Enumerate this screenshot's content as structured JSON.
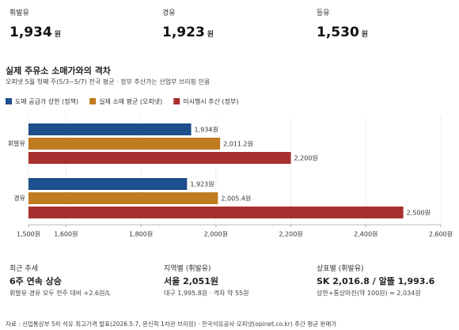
{
  "prices": [
    {
      "label": "휘발유",
      "value": "1,934",
      "unit": "원"
    },
    {
      "label": "경유",
      "value": "1,923",
      "unit": "원"
    },
    {
      "label": "등유",
      "value": "1,530",
      "unit": "원"
    }
  ],
  "chart_data": {
    "type": "bar",
    "orientation": "horizontal",
    "title": "실제 주유소 소매가와의 격차",
    "subtitle": "오피넷 5월 첫째 주(5/3~5/7) 전국 평균 · 정부 추산가는 산업부 브리핑 인용",
    "categories": [
      "휘발유",
      "경유"
    ],
    "series": [
      {
        "name": "도매 공급가 상한 (정책)",
        "color": "#1f4e8c",
        "values": [
          1934,
          1923
        ],
        "value_labels": [
          "1,934원",
          "1,923원"
        ]
      },
      {
        "name": "실제 소매 평균 (오피넷)",
        "color": "#c07a1f",
        "values": [
          2011.2,
          2005.4
        ],
        "value_labels": [
          "2,011.2원",
          "2,005.4원"
        ]
      },
      {
        "name": "미시행시 추산 (정부)",
        "color": "#a8302e",
        "values": [
          2200,
          2500
        ],
        "value_labels": [
          "2,200원",
          "2,500원"
        ]
      }
    ],
    "xlim": [
      1500,
      2600
    ],
    "xticks": [
      {
        "value": 1500,
        "label": "1,500원"
      },
      {
        "value": 1600,
        "label": "1,600원"
      },
      {
        "value": 1800,
        "label": "1,800원"
      },
      {
        "value": 2000,
        "label": "2,000원"
      },
      {
        "value": 2200,
        "label": "2,200원"
      },
      {
        "value": 2400,
        "label": "2,400원"
      },
      {
        "value": 2600,
        "label": "2,600원"
      }
    ]
  },
  "stats": [
    {
      "label": "최근 추세",
      "headline": "6주 연속 상승",
      "note": "휘발유·경유 모두 전주 대비 +2.6원/L"
    },
    {
      "label": "지역별 (휘발유)",
      "headline": "서울 2,051원",
      "note": "대구 1,995.8원 · 격차 약 55원"
    },
    {
      "label": "상표별 (휘발유)",
      "headline": "SK 2,016.8 / 알뜰 1,993.6",
      "note": "상한+통상마진(약 100원) ≈ 2,034원"
    }
  ],
  "source": "자료 : 산업통상부 5차 석유 최고가격 발표(2026.5.7, 문신학 1차관 브리핑) · 한국석유공사 오피넷(opinet.co.kr) 주간 평균 판매가"
}
